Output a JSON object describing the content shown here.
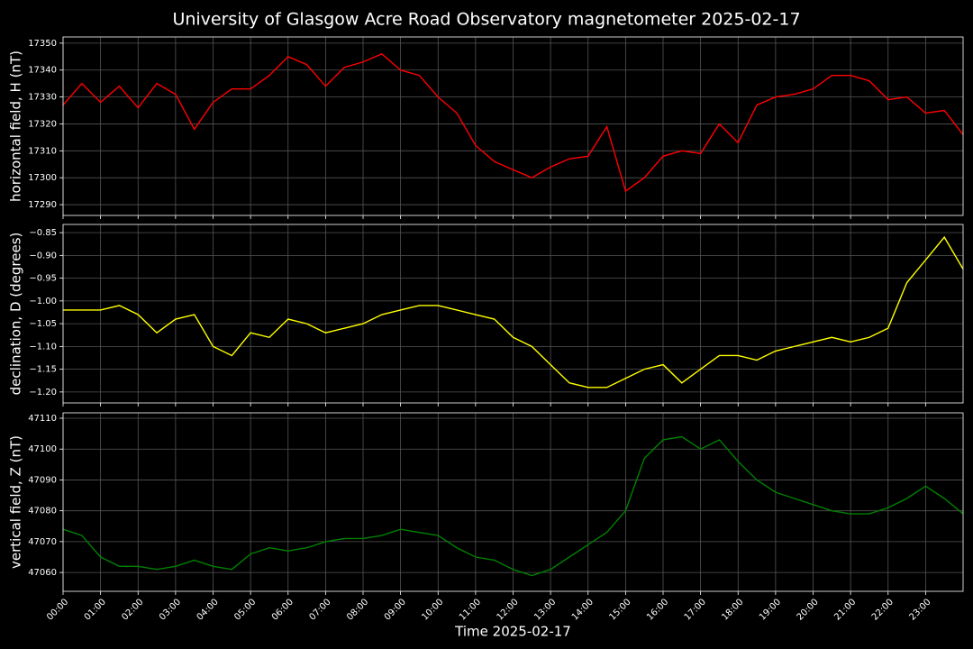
{
  "title": "University of Glasgow Acre Road Observatory magnetometer 2025-02-17",
  "chart_data": [
    {
      "type": "line",
      "ylabel": "horizontal field, H (nT)",
      "color": "#ff0000",
      "grid": true,
      "xlim": [
        0,
        24
      ],
      "ylim": [
        17286,
        17352.3
      ],
      "yticks": [
        17290,
        17300,
        17310,
        17320,
        17330,
        17340,
        17350
      ],
      "x": [
        0,
        0.5,
        1,
        1.5,
        2,
        2.5,
        3,
        3.5,
        4,
        4.5,
        5,
        5.5,
        6,
        6.5,
        7,
        7.5,
        8,
        8.5,
        9,
        9.5,
        10,
        10.5,
        11,
        11.5,
        12,
        12.5,
        13,
        13.5,
        14,
        14.5,
        15,
        15.5,
        16,
        16.5,
        17,
        17.5,
        18,
        18.5,
        19,
        19.5,
        20,
        20.5,
        21,
        21.5,
        22,
        22.5,
        23,
        23.5,
        24
      ],
      "values": [
        17327,
        17335,
        17328,
        17334,
        17326,
        17335,
        17331,
        17318,
        17328,
        17333,
        17333,
        17338,
        17345,
        17342,
        17334,
        17341,
        17343,
        17346,
        17340,
        17338,
        17330,
        17324,
        17312,
        17306,
        17303,
        17300,
        17304,
        17307,
        17308,
        17319,
        17295,
        17300,
        17308,
        17310,
        17309,
        17320,
        17313,
        17327,
        17330,
        17331,
        17333,
        17338,
        17338,
        17336,
        17329,
        17330,
        17324,
        17325,
        17316
      ]
    },
    {
      "type": "line",
      "ylabel": "declination, D (degrees)",
      "color": "#ffff00",
      "grid": true,
      "xlim": [
        0,
        24
      ],
      "ylim": [
        -1.224,
        -0.832
      ],
      "yticks": [
        {
          "value": -1.2,
          "label": "−1.20"
        },
        {
          "value": -1.15,
          "label": "−1.15"
        },
        {
          "value": -1.1,
          "label": "−1.10"
        },
        {
          "value": -1.05,
          "label": "−1.05"
        },
        {
          "value": -1.0,
          "label": "−1.00"
        },
        {
          "value": -0.95,
          "label": "−0.95"
        },
        {
          "value": -0.9,
          "label": "−0.90"
        },
        {
          "value": -0.85,
          "label": "−0.85"
        }
      ],
      "x": [
        0,
        0.5,
        1,
        1.5,
        2,
        2.5,
        3,
        3.5,
        4,
        4.5,
        5,
        5.5,
        6,
        6.5,
        7,
        7.5,
        8,
        8.5,
        9,
        9.5,
        10,
        10.5,
        11,
        11.5,
        12,
        12.5,
        13,
        13.5,
        14,
        14.5,
        15,
        15.5,
        16,
        16.5,
        17,
        17.5,
        18,
        18.5,
        19,
        19.5,
        20,
        20.5,
        21,
        21.5,
        22,
        22.5,
        23,
        23.5,
        24
      ],
      "values": [
        -1.02,
        -1.02,
        -1.02,
        -1.01,
        -1.03,
        -1.07,
        -1.04,
        -1.03,
        -1.1,
        -1.12,
        -1.07,
        -1.08,
        -1.04,
        -1.05,
        -1.07,
        -1.06,
        -1.05,
        -1.03,
        -1.02,
        -1.01,
        -1.01,
        -1.02,
        -1.03,
        -1.04,
        -1.08,
        -1.1,
        -1.14,
        -1.18,
        -1.19,
        -1.19,
        -1.17,
        -1.15,
        -1.14,
        -1.18,
        -1.15,
        -1.12,
        -1.12,
        -1.13,
        -1.11,
        -1.1,
        -1.09,
        -1.08,
        -1.09,
        -1.08,
        -1.06,
        -0.96,
        -0.91,
        -0.86,
        -0.93
      ]
    },
    {
      "type": "line",
      "ylabel": "vertical field, Z (nT)",
      "xlabel": "Time 2025-02-17",
      "color": "#008000",
      "grid": true,
      "xlim": [
        0,
        24
      ],
      "ylim": [
        47053.9,
        47111.75
      ],
      "yticks": [
        47060,
        47070,
        47080,
        47090,
        47100,
        47110
      ],
      "xticks": [
        {
          "value": 0,
          "label": "00:00"
        },
        {
          "value": 1,
          "label": "01:00"
        },
        {
          "value": 2,
          "label": "02:00"
        },
        {
          "value": 3,
          "label": "03:00"
        },
        {
          "value": 4,
          "label": "04:00"
        },
        {
          "value": 5,
          "label": "05:00"
        },
        {
          "value": 6,
          "label": "06:00"
        },
        {
          "value": 7,
          "label": "07:00"
        },
        {
          "value": 8,
          "label": "08:00"
        },
        {
          "value": 9,
          "label": "09:00"
        },
        {
          "value": 10,
          "label": "10:00"
        },
        {
          "value": 11,
          "label": "11:00"
        },
        {
          "value": 12,
          "label": "12:00"
        },
        {
          "value": 13,
          "label": "13:00"
        },
        {
          "value": 14,
          "label": "14:00"
        },
        {
          "value": 15,
          "label": "15:00"
        },
        {
          "value": 16,
          "label": "16:00"
        },
        {
          "value": 17,
          "label": "17:00"
        },
        {
          "value": 18,
          "label": "18:00"
        },
        {
          "value": 19,
          "label": "19:00"
        },
        {
          "value": 20,
          "label": "20:00"
        },
        {
          "value": 21,
          "label": "21:00"
        },
        {
          "value": 22,
          "label": "22:00"
        },
        {
          "value": 23,
          "label": "23:00"
        }
      ],
      "x": [
        0,
        0.5,
        1,
        1.5,
        2,
        2.5,
        3,
        3.5,
        4,
        4.5,
        5,
        5.5,
        6,
        6.5,
        7,
        7.5,
        8,
        8.5,
        9,
        9.5,
        10,
        10.5,
        11,
        11.5,
        12,
        12.5,
        13,
        13.5,
        14,
        14.5,
        15,
        15.5,
        16,
        16.5,
        17,
        17.5,
        18,
        18.5,
        19,
        19.5,
        20,
        20.5,
        21,
        21.5,
        22,
        22.5,
        23,
        23.5,
        24
      ],
      "values": [
        47074,
        47072,
        47065,
        47062,
        47062,
        47061,
        47062,
        47064,
        47062,
        47061,
        47066,
        47068,
        47067,
        47068,
        47070,
        47071,
        47071,
        47072,
        47074,
        47073,
        47072,
        47068,
        47065,
        47064,
        47061,
        47059,
        47061,
        47065,
        47069,
        47073,
        47080,
        47097,
        47103,
        47104,
        47100,
        47103,
        47096,
        47090,
        47086,
        47084,
        47082,
        47080,
        47079,
        47079,
        47081,
        47084,
        47088,
        47084,
        47079
      ]
    }
  ]
}
